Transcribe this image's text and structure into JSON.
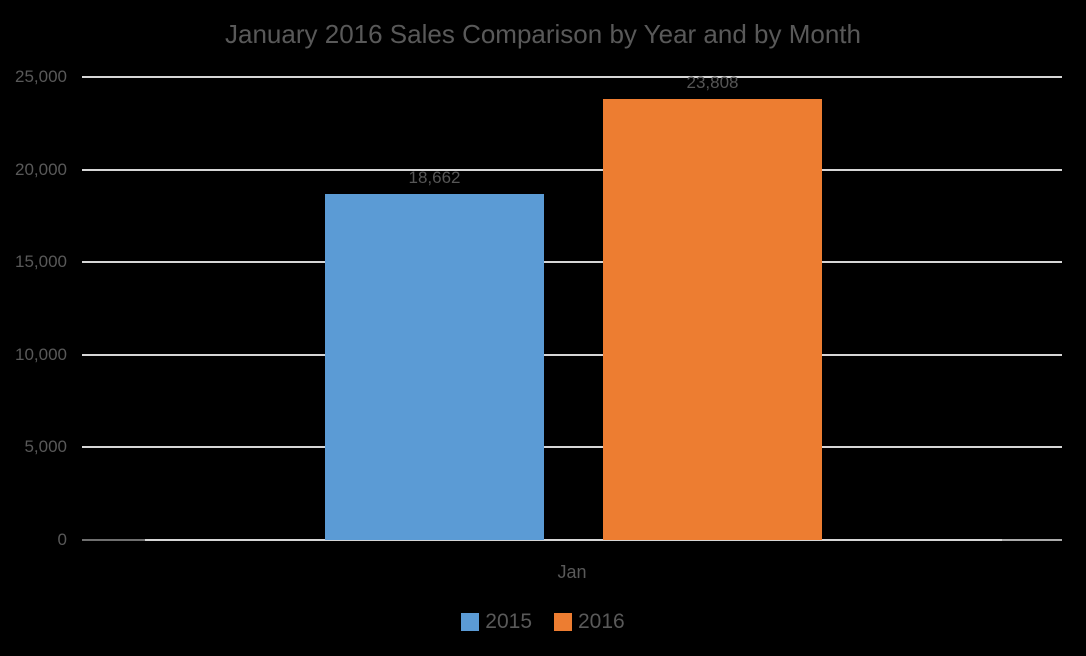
{
  "chart_data": {
    "type": "bar",
    "title": "January 2016 Sales Comparison by Year and by Month",
    "categories": [
      "Jan"
    ],
    "series": [
      {
        "name": "2015",
        "color": "#5B9BD5",
        "values": [
          18662
        ],
        "data_labels": [
          "18,662"
        ]
      },
      {
        "name": "2016",
        "color": "#ED7D31",
        "values": [
          23808
        ],
        "data_labels": [
          "23,808"
        ]
      }
    ],
    "ylim": [
      0,
      25000
    ],
    "ytick_interval": 5000,
    "yticks": [
      {
        "value": 0,
        "label": "0"
      },
      {
        "value": 5000,
        "label": "5,000"
      },
      {
        "value": 10000,
        "label": "10,000"
      },
      {
        "value": 15000,
        "label": "15,000"
      },
      {
        "value": 20000,
        "label": "20,000"
      },
      {
        "value": 25000,
        "label": "25,000"
      }
    ],
    "grid": true,
    "legend_position": "bottom",
    "xlabel": "",
    "ylabel": ""
  },
  "colors": {
    "background": "#000000",
    "text": "#595959",
    "gridline": "#D6D6D6",
    "axis_segment_dark": "#6F6F6F",
    "axis_segment_medium": "#ACACAC"
  }
}
